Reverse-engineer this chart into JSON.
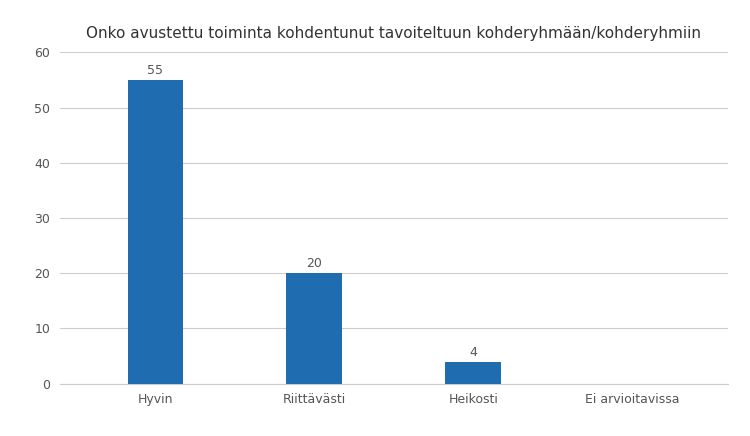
{
  "title": "Onko avustettu toiminta kohdentunut tavoiteltuun kohderyhmään/kohderyhmiin",
  "categories": [
    "Hyvin",
    "Riittävästi",
    "Heikosti",
    "Ei arvioitavissa"
  ],
  "values": [
    55,
    20,
    4,
    0
  ],
  "bar_color": "#1F6CB0",
  "background_color": "#ffffff",
  "ylim": [
    0,
    60
  ],
  "yticks": [
    0,
    10,
    20,
    30,
    40,
    50,
    60
  ],
  "title_fontsize": 11,
  "tick_fontsize": 9,
  "label_fontsize": 9,
  "bar_width": 0.35
}
